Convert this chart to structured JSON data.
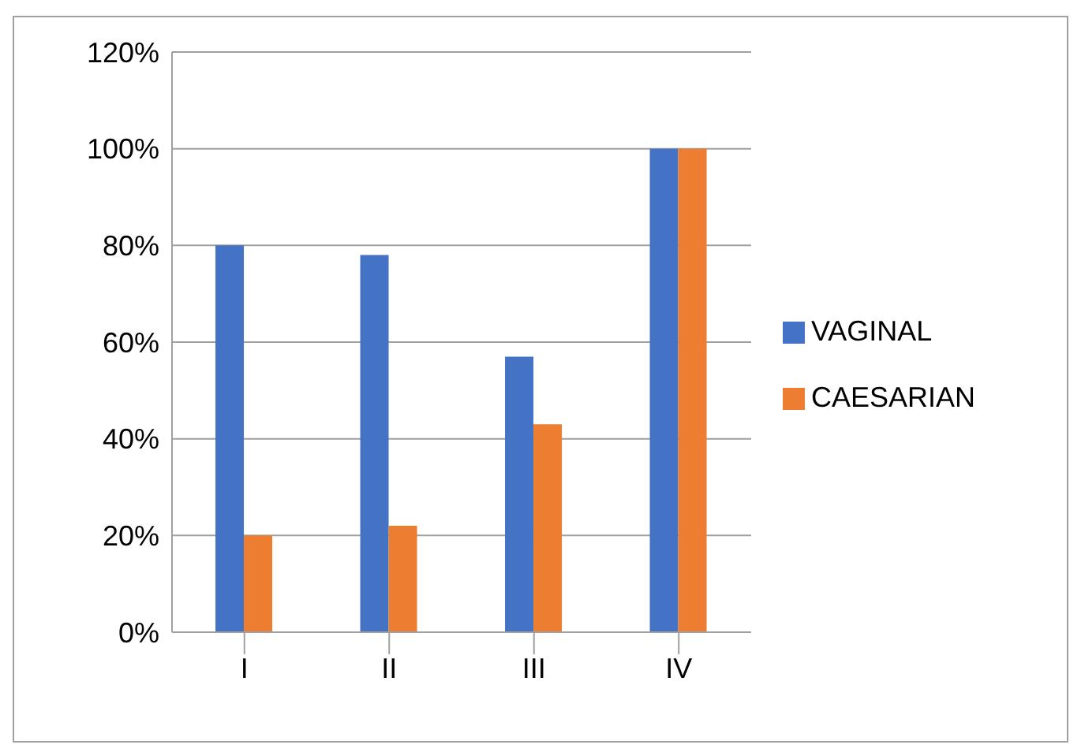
{
  "chart_data": {
    "type": "bar",
    "categories": [
      "I",
      "II",
      "III",
      "IV"
    ],
    "series": [
      {
        "name": "VAGINAL",
        "color": "#4472c4",
        "values": [
          80,
          78,
          57,
          100
        ]
      },
      {
        "name": "CAESARIAN",
        "color": "#ed7d31",
        "values": [
          20,
          22,
          43,
          100
        ]
      }
    ],
    "ylim": [
      0,
      120
    ],
    "yticks": [
      {
        "value": 0,
        "label": "0%"
      },
      {
        "value": 20,
        "label": "20%"
      },
      {
        "value": 40,
        "label": "40%"
      },
      {
        "value": 60,
        "label": "60%"
      },
      {
        "value": 80,
        "label": "80%"
      },
      {
        "value": 100,
        "label": "100%"
      },
      {
        "value": 120,
        "label": "120%"
      }
    ],
    "grid": "y",
    "legend": "right"
  }
}
